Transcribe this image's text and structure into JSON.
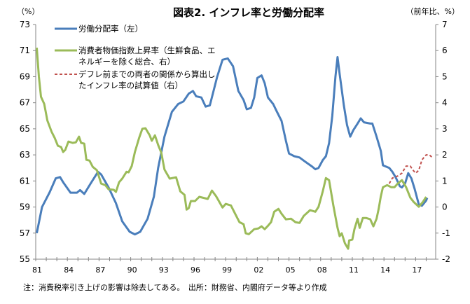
{
  "chart_data": {
    "type": "line",
    "title": "図表2. インフレ率と労働分配率",
    "left_unit": "（%）",
    "right_unit": "（前年比、%）",
    "ylim_left": [
      55,
      73
    ],
    "ylim_right": [
      -2,
      7
    ],
    "left_ticks": [
      "55",
      "57",
      "59",
      "61",
      "63",
      "65",
      "67",
      "69",
      "71",
      "73"
    ],
    "right_ticks": [
      "-2",
      "-1",
      "0",
      "1",
      "2",
      "3",
      "4",
      "5",
      "6",
      "7"
    ],
    "xlim": [
      1981,
      2018.9
    ],
    "x_tick_labels": [
      "81",
      "84",
      "87",
      "90",
      "93",
      "96",
      "99",
      "02",
      "05",
      "08",
      "11",
      "14",
      "17"
    ],
    "x_tick_years": [
      1981,
      1984,
      1987,
      1990,
      1993,
      1996,
      1999,
      2002,
      2005,
      2008,
      2011,
      2014,
      2017
    ],
    "legend_position": "top-left",
    "footnote": "注：消費税率引き上げの影響は除去してある。　出所：財務省、内閣府データ等より作成",
    "series": [
      {
        "name": "労働分配率（左）",
        "axis": "left",
        "color": "#4a7ebb",
        "dashed": false,
        "legend_lines": [
          "労働分配率（左）"
        ],
        "points": [
          [
            1981.1,
            57.0
          ],
          [
            1981.6,
            59.0
          ],
          [
            1982.3,
            60.1
          ],
          [
            1982.9,
            61.2
          ],
          [
            1983.3,
            61.3
          ],
          [
            1983.6,
            60.9
          ],
          [
            1984.3,
            60.1
          ],
          [
            1984.9,
            60.1
          ],
          [
            1985.2,
            60.3
          ],
          [
            1985.6,
            60.0
          ],
          [
            1986.2,
            60.8
          ],
          [
            1986.9,
            61.7
          ],
          [
            1987.2,
            61.5
          ],
          [
            1987.9,
            60.5
          ],
          [
            1988.6,
            59.3
          ],
          [
            1989.2,
            57.9
          ],
          [
            1989.9,
            57.1
          ],
          [
            1990.4,
            56.9
          ],
          [
            1990.9,
            57.1
          ],
          [
            1991.6,
            58.1
          ],
          [
            1992.2,
            59.8
          ],
          [
            1992.6,
            62.0
          ],
          [
            1993.2,
            64.4
          ],
          [
            1993.9,
            66.3
          ],
          [
            1994.5,
            66.9
          ],
          [
            1995.0,
            67.1
          ],
          [
            1995.5,
            67.7
          ],
          [
            1995.9,
            67.9
          ],
          [
            1996.2,
            67.5
          ],
          [
            1996.7,
            67.4
          ],
          [
            1997.1,
            66.7
          ],
          [
            1997.5,
            66.8
          ],
          [
            1998.2,
            69.0
          ],
          [
            1998.7,
            70.3
          ],
          [
            1999.2,
            70.4
          ],
          [
            1999.7,
            69.8
          ],
          [
            2000.2,
            67.9
          ],
          [
            2000.7,
            67.2
          ],
          [
            2001.0,
            66.5
          ],
          [
            2001.4,
            66.6
          ],
          [
            2001.7,
            67.4
          ],
          [
            2002.0,
            68.9
          ],
          [
            2002.4,
            69.1
          ],
          [
            2002.7,
            68.5
          ],
          [
            2003.0,
            67.4
          ],
          [
            2003.5,
            66.9
          ],
          [
            2003.8,
            66.4
          ],
          [
            2004.3,
            65.6
          ],
          [
            2004.7,
            64.1
          ],
          [
            2005.0,
            63.1
          ],
          [
            2005.5,
            62.9
          ],
          [
            2006.0,
            62.8
          ],
          [
            2006.5,
            62.5
          ],
          [
            2007.2,
            62.1
          ],
          [
            2007.5,
            61.9
          ],
          [
            2007.8,
            62.0
          ],
          [
            2008.2,
            62.6
          ],
          [
            2008.5,
            62.9
          ],
          [
            2008.8,
            63.9
          ],
          [
            2009.1,
            66.0
          ],
          [
            2009.4,
            69.0
          ],
          [
            2009.6,
            70.5
          ],
          [
            2009.8,
            69.2
          ],
          [
            2010.2,
            66.8
          ],
          [
            2010.5,
            65.3
          ],
          [
            2010.8,
            64.4
          ],
          [
            2011.1,
            64.9
          ],
          [
            2011.5,
            65.4
          ],
          [
            2011.8,
            65.8
          ],
          [
            2012.1,
            65.5
          ],
          [
            2012.7,
            65.4
          ],
          [
            2012.9,
            65.4
          ],
          [
            2013.3,
            64.4
          ],
          [
            2013.7,
            63.3
          ],
          [
            2013.9,
            62.2
          ],
          [
            2014.5,
            62.0
          ],
          [
            2014.8,
            61.7
          ],
          [
            2015.1,
            61.3
          ],
          [
            2015.5,
            60.6
          ],
          [
            2015.7,
            60.5
          ],
          [
            2016.0,
            60.8
          ],
          [
            2016.3,
            61.6
          ],
          [
            2016.6,
            61.2
          ],
          [
            2016.9,
            60.4
          ],
          [
            2017.3,
            59.2
          ],
          [
            2017.6,
            59.1
          ],
          [
            2018.0,
            59.5
          ],
          [
            2018.1,
            59.7
          ]
        ]
      },
      {
        "name": "消費者物価指数上昇率（生鮮食品、エネルギーを除く総合、右）",
        "axis": "right",
        "color": "#9bbb59",
        "dashed": false,
        "legend_lines": [
          "消費者物価指数上昇率（生鮮食品、エ",
          "ネルギーを除く総合、右）"
        ],
        "points": [
          [
            1981.1,
            6.11
          ],
          [
            1981.3,
            5.0
          ],
          [
            1981.5,
            4.23
          ],
          [
            1981.8,
            3.96
          ],
          [
            1982.1,
            3.32
          ],
          [
            1982.5,
            2.89
          ],
          [
            1982.8,
            2.65
          ],
          [
            1983.1,
            2.35
          ],
          [
            1983.4,
            2.3
          ],
          [
            1983.6,
            2.11
          ],
          [
            1983.8,
            2.19
          ],
          [
            1984.1,
            2.51
          ],
          [
            1984.5,
            2.46
          ],
          [
            1984.8,
            2.48
          ],
          [
            1985.1,
            2.7
          ],
          [
            1985.3,
            2.46
          ],
          [
            1985.6,
            2.43
          ],
          [
            1985.8,
            1.81
          ],
          [
            1986.1,
            1.78
          ],
          [
            1986.4,
            1.54
          ],
          [
            1986.8,
            1.41
          ],
          [
            1987.2,
            0.9
          ],
          [
            1987.6,
            0.84
          ],
          [
            1987.9,
            0.68
          ],
          [
            1988.4,
            0.66
          ],
          [
            1988.6,
            0.58
          ],
          [
            1988.9,
            0.95
          ],
          [
            1989.2,
            1.09
          ],
          [
            1989.6,
            1.35
          ],
          [
            1989.8,
            1.33
          ],
          [
            1990.1,
            1.57
          ],
          [
            1990.4,
            2.11
          ],
          [
            1990.8,
            2.65
          ],
          [
            1991.1,
            3.0
          ],
          [
            1991.4,
            3.02
          ],
          [
            1991.8,
            2.75
          ],
          [
            1992.0,
            2.54
          ],
          [
            1992.3,
            2.75
          ],
          [
            1992.6,
            2.38
          ],
          [
            1992.9,
            2.08
          ],
          [
            1993.2,
            1.44
          ],
          [
            1993.4,
            1.3
          ],
          [
            1993.7,
            1.09
          ],
          [
            1994.3,
            1.14
          ],
          [
            1994.7,
            0.6
          ],
          [
            1995.1,
            0.47
          ],
          [
            1995.3,
            -0.1
          ],
          [
            1995.5,
            -0.04
          ],
          [
            1995.7,
            0.23
          ],
          [
            1996.1,
            0.23
          ],
          [
            1996.5,
            0.39
          ],
          [
            1997.3,
            0.31
          ],
          [
            1997.7,
            0.63
          ],
          [
            1998.1,
            0.41
          ],
          [
            1998.7,
            -0.02
          ],
          [
            1999.0,
            0.12
          ],
          [
            1999.5,
            0.06
          ],
          [
            1999.9,
            -0.26
          ],
          [
            2000.3,
            -0.58
          ],
          [
            2000.7,
            -0.66
          ],
          [
            2000.9,
            -1.01
          ],
          [
            2001.2,
            -1.04
          ],
          [
            2001.7,
            -0.85
          ],
          [
            2002.1,
            -0.82
          ],
          [
            2002.4,
            -0.74
          ],
          [
            2002.7,
            -0.85
          ],
          [
            2003.0,
            -0.72
          ],
          [
            2003.3,
            -0.58
          ],
          [
            2003.6,
            -0.18
          ],
          [
            2004.0,
            -0.07
          ],
          [
            2004.3,
            -0.26
          ],
          [
            2004.7,
            -0.47
          ],
          [
            2005.2,
            -0.45
          ],
          [
            2005.6,
            -0.58
          ],
          [
            2006.0,
            -0.61
          ],
          [
            2006.4,
            -0.34
          ],
          [
            2007.0,
            -0.12
          ],
          [
            2007.5,
            -0.18
          ],
          [
            2007.8,
            0.01
          ],
          [
            2008.2,
            0.6
          ],
          [
            2008.5,
            1.11
          ],
          [
            2008.8,
            1.03
          ],
          [
            2009.2,
            0.06
          ],
          [
            2009.6,
            -0.8
          ],
          [
            2009.8,
            -1.12
          ],
          [
            2010.0,
            -1.01
          ],
          [
            2010.3,
            -1.39
          ],
          [
            2010.6,
            -1.6
          ],
          [
            2010.7,
            -1.28
          ],
          [
            2011.0,
            -1.25
          ],
          [
            2011.2,
            -0.85
          ],
          [
            2011.5,
            -0.45
          ],
          [
            2011.7,
            -0.8
          ],
          [
            2012.0,
            -0.42
          ],
          [
            2012.3,
            -0.42
          ],
          [
            2012.7,
            -0.47
          ],
          [
            2013.0,
            -0.74
          ],
          [
            2013.3,
            -0.45
          ],
          [
            2013.5,
            -0.07
          ],
          [
            2013.7,
            0.41
          ],
          [
            2013.9,
            0.76
          ],
          [
            2014.3,
            0.84
          ],
          [
            2014.7,
            0.76
          ],
          [
            2015.0,
            0.76
          ],
          [
            2015.3,
            0.9
          ],
          [
            2015.7,
            1.03
          ],
          [
            2016.1,
            0.76
          ],
          [
            2016.5,
            0.36
          ],
          [
            2016.8,
            0.2
          ],
          [
            2017.3,
            0.01
          ],
          [
            2017.7,
            0.2
          ],
          [
            2018.0,
            0.39
          ]
        ]
      },
      {
        "name": "デフレ前までの両者の関係から算出したインフレ率の試算値（右）",
        "axis": "right",
        "color": "#c0504d",
        "dashed": true,
        "legend_lines": [
          "デフレ前までの両者の関係から算出し",
          "たインフレ率の試算値（右）"
        ],
        "points": [
          [
            2014.5,
            0.9
          ],
          [
            2014.8,
            1.11
          ],
          [
            2015.3,
            1.19
          ],
          [
            2015.7,
            1.3
          ],
          [
            2016.1,
            1.57
          ],
          [
            2016.5,
            1.57
          ],
          [
            2016.7,
            1.44
          ],
          [
            2017.0,
            1.3
          ],
          [
            2017.3,
            1.41
          ],
          [
            2017.6,
            1.81
          ],
          [
            2018.0,
            2.0
          ],
          [
            2018.3,
            2.0
          ],
          [
            2018.6,
            1.89
          ]
        ]
      }
    ]
  }
}
